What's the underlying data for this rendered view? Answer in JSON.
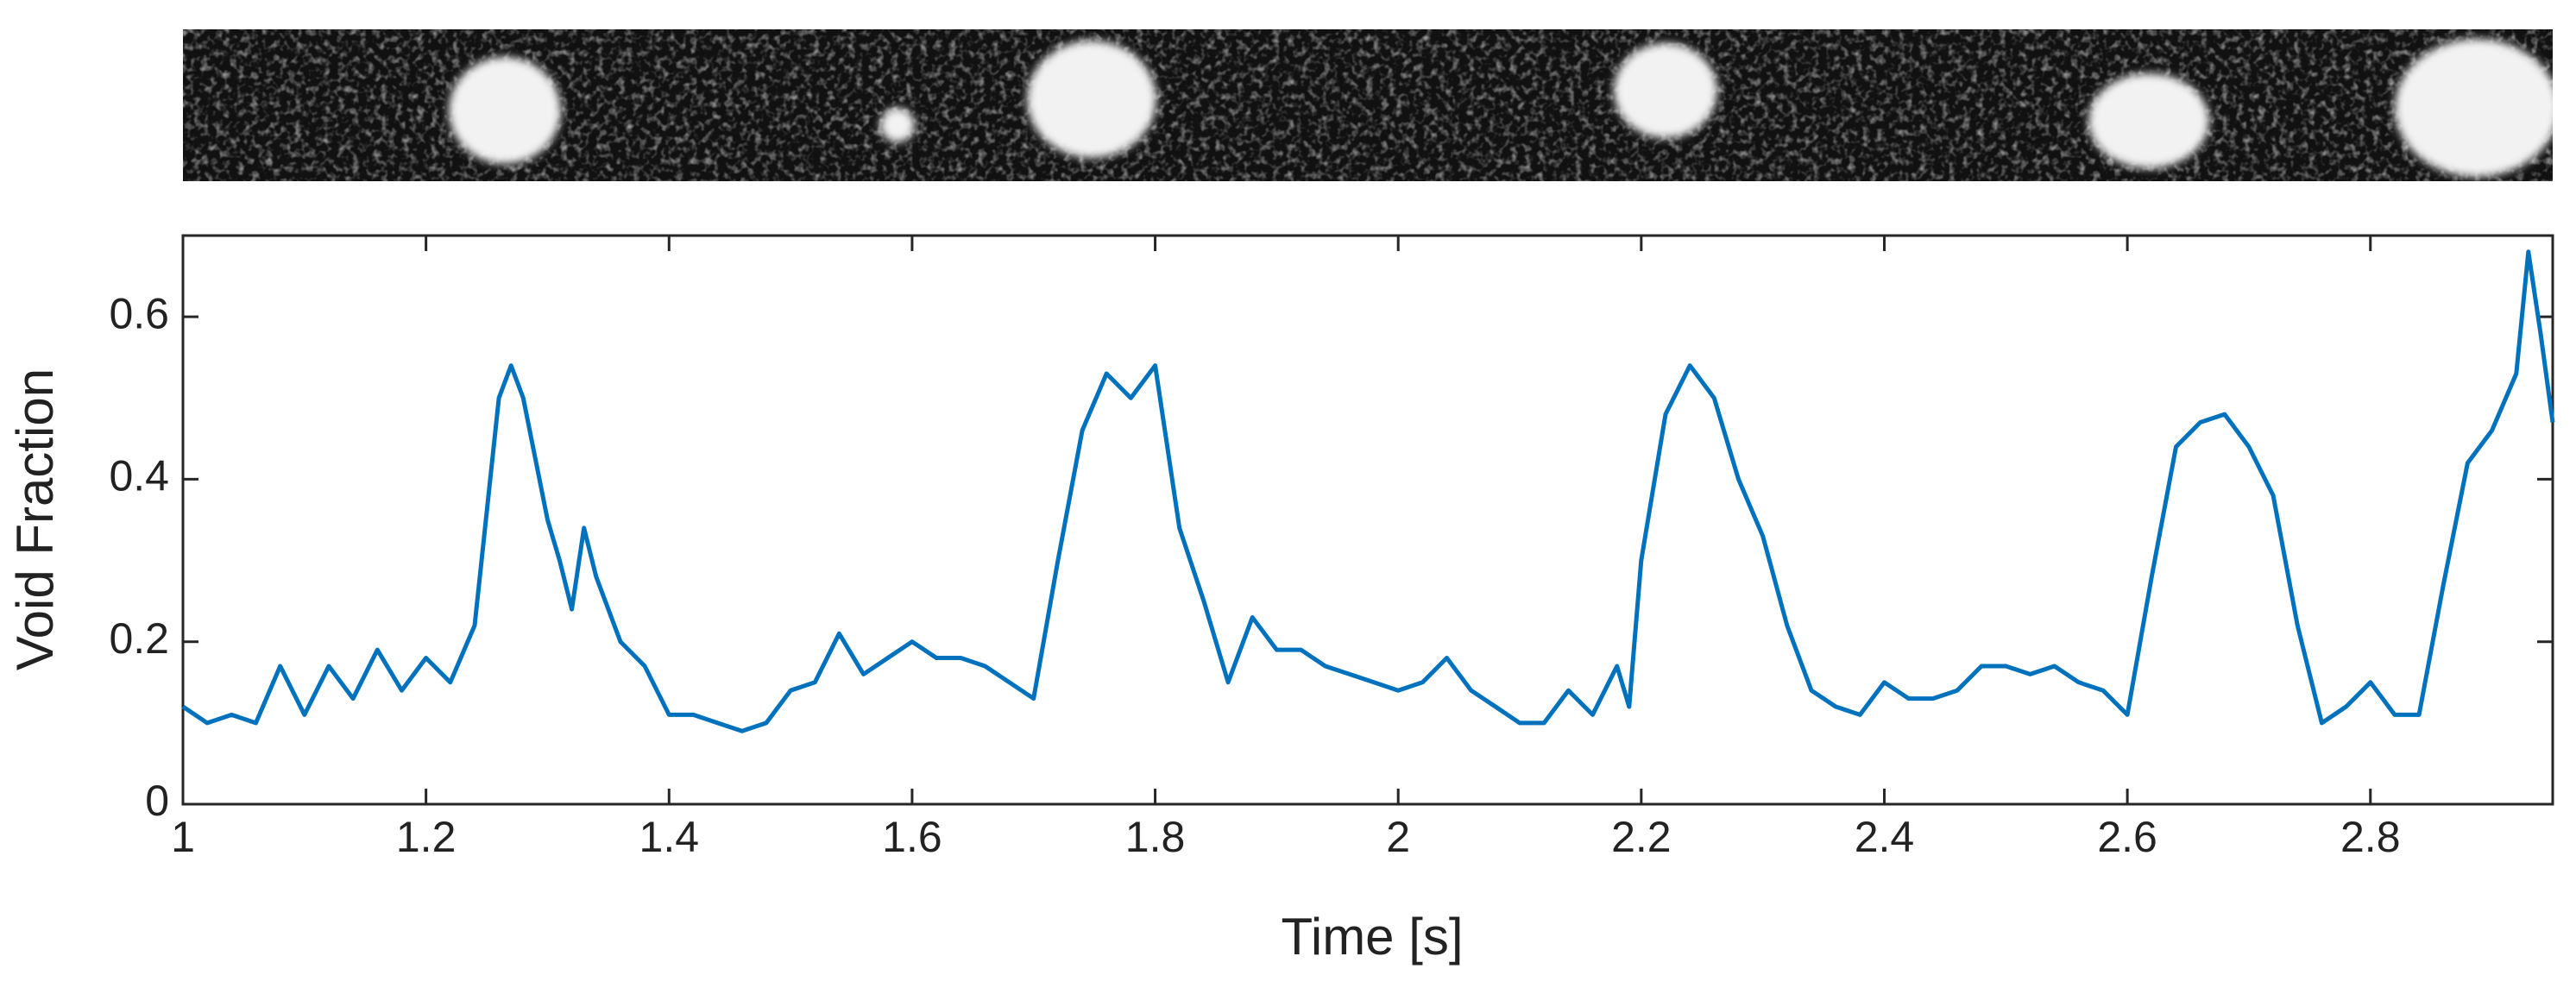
{
  "chart_data": {
    "type": "line",
    "xlabel": "Time [s]",
    "ylabel": "Void Fraction",
    "x": [
      1.0,
      1.02,
      1.04,
      1.06,
      1.08,
      1.1,
      1.12,
      1.14,
      1.16,
      1.18,
      1.2,
      1.22,
      1.24,
      1.26,
      1.27,
      1.28,
      1.3,
      1.31,
      1.32,
      1.33,
      1.34,
      1.36,
      1.38,
      1.4,
      1.42,
      1.44,
      1.46,
      1.48,
      1.5,
      1.52,
      1.54,
      1.56,
      1.58,
      1.6,
      1.62,
      1.64,
      1.66,
      1.68,
      1.7,
      1.72,
      1.74,
      1.76,
      1.78,
      1.8,
      1.82,
      1.84,
      1.86,
      1.88,
      1.9,
      1.92,
      1.94,
      1.96,
      1.98,
      2.0,
      2.02,
      2.04,
      2.06,
      2.08,
      2.1,
      2.12,
      2.14,
      2.16,
      2.18,
      2.19,
      2.2,
      2.22,
      2.24,
      2.26,
      2.28,
      2.3,
      2.32,
      2.34,
      2.36,
      2.38,
      2.4,
      2.42,
      2.44,
      2.46,
      2.48,
      2.5,
      2.52,
      2.54,
      2.56,
      2.58,
      2.6,
      2.62,
      2.64,
      2.66,
      2.68,
      2.7,
      2.72,
      2.74,
      2.76,
      2.78,
      2.8,
      2.82,
      2.84,
      2.86,
      2.88,
      2.9,
      2.92,
      2.93,
      2.94,
      2.95
    ],
    "series": [
      {
        "name": "Void Fraction",
        "color": "#0072bd",
        "values": [
          0.12,
          0.1,
          0.11,
          0.1,
          0.17,
          0.11,
          0.17,
          0.13,
          0.19,
          0.14,
          0.18,
          0.15,
          0.22,
          0.5,
          0.54,
          0.5,
          0.35,
          0.3,
          0.24,
          0.34,
          0.28,
          0.2,
          0.17,
          0.11,
          0.11,
          0.1,
          0.09,
          0.1,
          0.14,
          0.15,
          0.21,
          0.16,
          0.18,
          0.2,
          0.18,
          0.18,
          0.17,
          0.15,
          0.13,
          0.3,
          0.46,
          0.53,
          0.5,
          0.54,
          0.34,
          0.25,
          0.15,
          0.23,
          0.19,
          0.19,
          0.17,
          0.16,
          0.15,
          0.14,
          0.15,
          0.18,
          0.14,
          0.12,
          0.1,
          0.1,
          0.14,
          0.11,
          0.17,
          0.12,
          0.3,
          0.48,
          0.54,
          0.5,
          0.4,
          0.33,
          0.22,
          0.14,
          0.12,
          0.11,
          0.15,
          0.13,
          0.13,
          0.14,
          0.17,
          0.17,
          0.16,
          0.17,
          0.15,
          0.14,
          0.11,
          0.28,
          0.44,
          0.47,
          0.48,
          0.44,
          0.38,
          0.22,
          0.1,
          0.12,
          0.15,
          0.11,
          0.11,
          0.27,
          0.42,
          0.46,
          0.53,
          0.68,
          0.58,
          0.47
        ]
      }
    ],
    "xlim": [
      1,
      2.95
    ],
    "ylim": [
      0,
      0.7
    ],
    "xticks": [
      1,
      1.2,
      1.4,
      1.6,
      1.8,
      2,
      2.2,
      2.4,
      2.6,
      2.8
    ],
    "yticks": [
      0,
      0.2,
      0.4,
      0.6
    ]
  }
}
